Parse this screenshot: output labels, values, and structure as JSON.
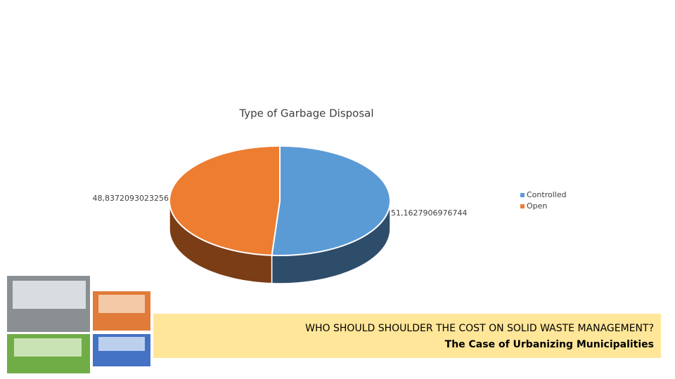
{
  "chart_data": {
    "type": "pie3d",
    "title": "Type of Garbage Disposal",
    "categories": [
      "Controlled",
      "Open"
    ],
    "values": [
      51.1627906976744,
      48.8372093023256
    ],
    "value_labels": [
      "51,1627906976744",
      "48,8372093023256"
    ],
    "colors": [
      "#5b9bd5",
      "#ed7d31"
    ],
    "side_colors": [
      "#2e4d6b",
      "#7a3d16"
    ],
    "legend": "right"
  },
  "banner": {
    "line1": "WHO SHOULD SHOULDER THE COST ON SOLID WASTE MANAGEMENT?",
    "line2": "The Case of Urbanizing Municipalities"
  }
}
